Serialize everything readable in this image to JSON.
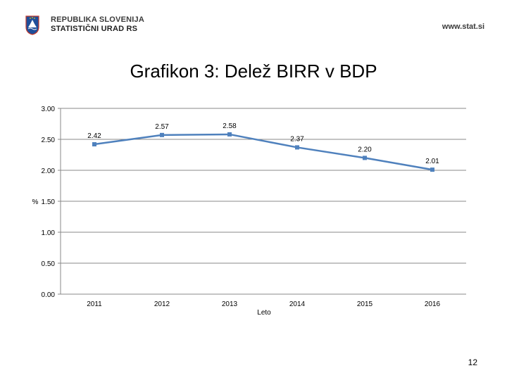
{
  "header": {
    "org_line1": "REPUBLIKA SLOVENIJA",
    "org_line2": "STATISTIČNI URAD RS",
    "website": "www.stat.si"
  },
  "colors": {
    "series": "#4f81bd",
    "gridline": "#888888",
    "logo_blue": "#1f4e9a"
  },
  "page_number": "12",
  "chart_data": {
    "type": "line",
    "title": "Grafikon 3: Delež BIRR v BDP",
    "xlabel": "Leto",
    "ylabel": "%",
    "categories": [
      "2011",
      "2012",
      "2013",
      "2014",
      "2015",
      "2016"
    ],
    "series": [
      {
        "values": [
          2.42,
          2.57,
          2.58,
          2.37,
          2.2,
          2.01
        ]
      }
    ],
    "data_labels": [
      "2.42",
      "2.57",
      "2.58",
      "2.37",
      "2.20",
      "2.01"
    ],
    "ylim": [
      0,
      3
    ],
    "yticks": [
      "0.00",
      "0.50",
      "1.00",
      "1.50",
      "2.00",
      "2.50",
      "3.00"
    ],
    "grid": true,
    "legend": "none"
  }
}
